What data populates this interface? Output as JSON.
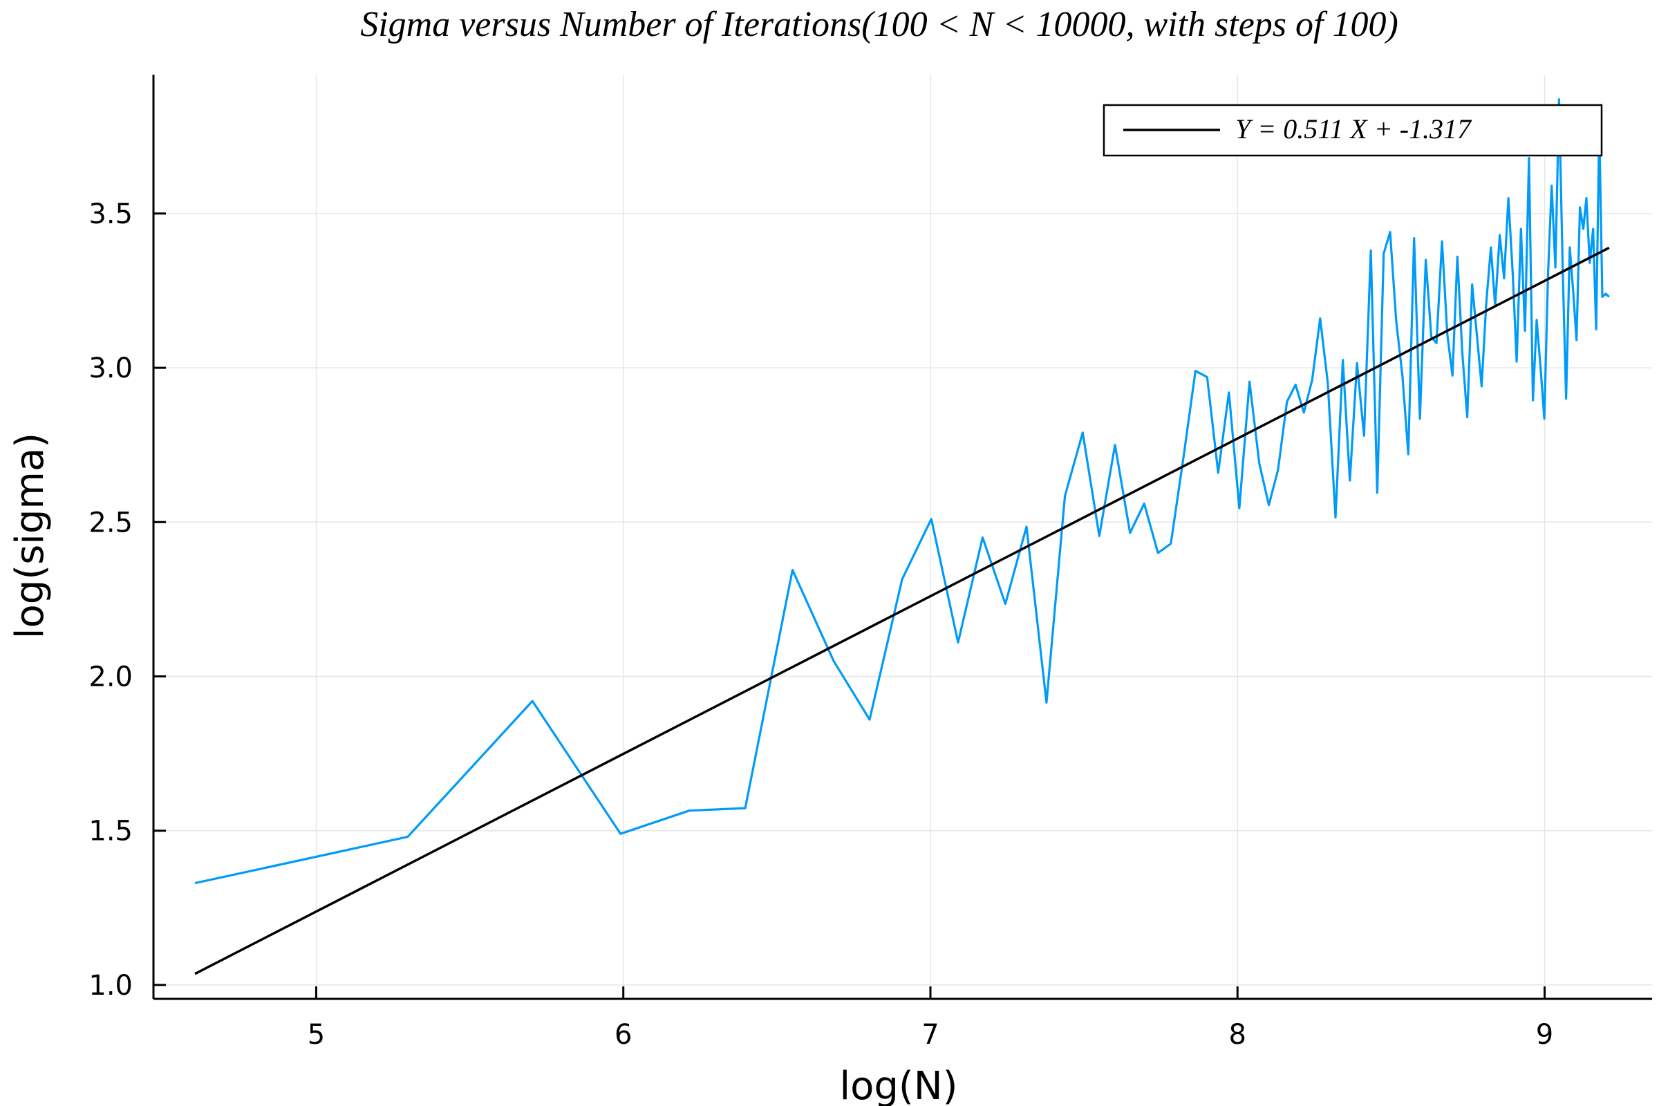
{
  "chart_data": {
    "type": "line",
    "title": "Sigma versus Number of Iterations(100 < N < 10000, with steps of 100)",
    "xlabel": "log(N)",
    "ylabel": "log(sigma)",
    "xlim": [
      4.47,
      9.35
    ],
    "ylim": [
      0.955,
      3.95
    ],
    "xticks": [
      5,
      6,
      7,
      8,
      9
    ],
    "xtick_labels": [
      "5",
      "6",
      "7",
      "8",
      "9"
    ],
    "yticks": [
      1.0,
      1.5,
      2.0,
      2.5,
      3.0,
      3.5
    ],
    "ytick_labels": [
      "1.0",
      "1.5",
      "2.0",
      "2.5",
      "3.0",
      "3.5"
    ],
    "grid": true,
    "legend_position": "top-right",
    "colors": {
      "data": "#009af9",
      "fit": "#000000"
    },
    "series": [
      {
        "kind": "data",
        "x": [
          4.605,
          5.298,
          5.704,
          5.991,
          6.215,
          6.397,
          6.551,
          6.685,
          6.802,
          6.908,
          7.003,
          7.09,
          7.17,
          7.244,
          7.313,
          7.378,
          7.438,
          7.496,
          7.55,
          7.601,
          7.65,
          7.696,
          7.741,
          7.783,
          7.824,
          7.863,
          7.901,
          7.937,
          7.972,
          8.006,
          8.039,
          8.071,
          8.102,
          8.132,
          8.161,
          8.189,
          8.216,
          8.243,
          8.269,
          8.294,
          8.319,
          8.343,
          8.366,
          8.389,
          8.412,
          8.434,
          8.455,
          8.476,
          8.497,
          8.517,
          8.537,
          8.556,
          8.575,
          8.594,
          8.613,
          8.631,
          8.648,
          8.666,
          8.683,
          8.7,
          8.716,
          8.732,
          8.748,
          8.764,
          8.78,
          8.795,
          8.81,
          8.825,
          8.839,
          8.854,
          8.868,
          8.882,
          8.896,
          8.909,
          8.923,
          8.936,
          8.949,
          8.962,
          8.974,
          8.987,
          8.999,
          9.011,
          9.023,
          9.035,
          9.047,
          9.059,
          9.07,
          9.082,
          9.093,
          9.104,
          9.115,
          9.126,
          9.136,
          9.147,
          9.158,
          9.168,
          9.178,
          9.188,
          9.199,
          9.21
        ],
        "y": [
          1.33,
          1.48,
          1.92,
          1.49,
          1.565,
          1.573,
          2.345,
          2.05,
          1.86,
          2.315,
          2.51,
          2.11,
          2.45,
          2.235,
          2.485,
          1.915,
          2.585,
          2.79,
          2.455,
          2.75,
          2.465,
          2.56,
          2.4,
          2.43,
          2.71,
          2.99,
          2.97,
          2.66,
          2.92,
          2.545,
          2.955,
          2.69,
          2.555,
          2.67,
          2.89,
          2.945,
          2.855,
          2.96,
          3.16,
          2.95,
          2.515,
          3.025,
          2.635,
          3.015,
          2.78,
          3.38,
          2.595,
          3.37,
          3.44,
          3.15,
          2.975,
          2.72,
          3.42,
          2.835,
          3.35,
          3.1,
          3.08,
          3.41,
          3.11,
          2.975,
          3.36,
          3.05,
          2.84,
          3.27,
          3.1,
          2.94,
          3.21,
          3.39,
          3.2,
          3.43,
          3.29,
          3.55,
          3.31,
          3.02,
          3.45,
          3.12,
          3.68,
          2.895,
          3.155,
          3.0,
          2.835,
          3.3,
          3.59,
          3.325,
          3.87,
          3.32,
          2.9,
          3.39,
          3.25,
          3.09,
          3.52,
          3.45,
          3.55,
          3.34,
          3.45,
          3.125,
          3.78,
          3.23,
          3.24,
          3.23
        ]
      },
      {
        "kind": "fit",
        "name": "Y = 0.511 X + -1.317",
        "x": [
          4.605,
          9.21
        ],
        "y": [
          1.036,
          3.389
        ]
      }
    ]
  }
}
